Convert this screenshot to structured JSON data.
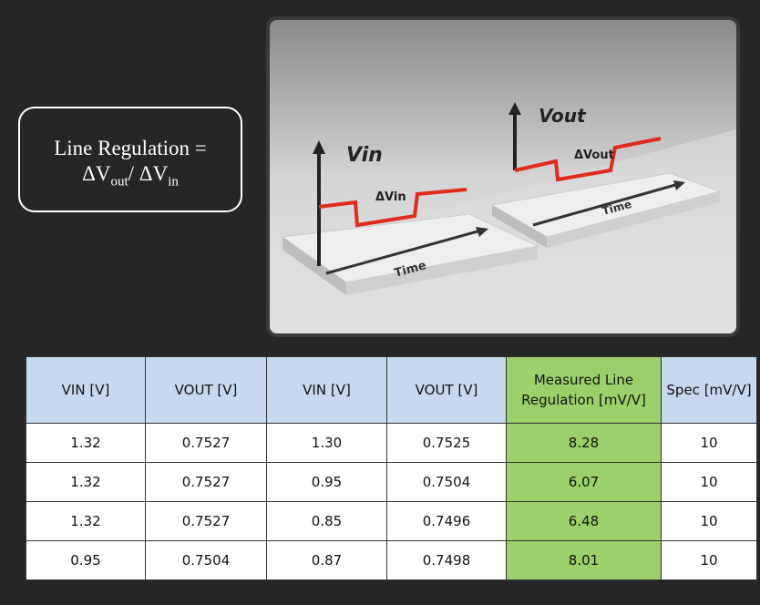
{
  "formula": {
    "left": "Line Regulation =",
    "delta_out": "ΔV",
    "out_sub": "out",
    "slash": "/ ΔV",
    "in_sub": "in"
  },
  "illustration": {
    "left": {
      "axis_label": "Vin",
      "delta_label": "ΔVin",
      "time_label": "Time"
    },
    "right": {
      "axis_label": "Vout",
      "delta_label": "ΔVout",
      "time_label": "Time"
    }
  },
  "table": {
    "header": [
      "VIN [V]",
      "VOUT [V]",
      "VIN [V]",
      "VOUT [V]",
      "Measured Line Regulation [mV/V]",
      "Spec [mV/V]"
    ],
    "rows": [
      [
        "1.32",
        "0.7527",
        "1.30",
        "0.7525",
        "8.28",
        "10"
      ],
      [
        "1.32",
        "0.7527",
        "0.95",
        "0.7504",
        "6.07",
        "10"
      ],
      [
        "1.32",
        "0.7527",
        "0.85",
        "0.7496",
        "6.48",
        "10"
      ],
      [
        "0.95",
        "0.7504",
        "0.87",
        "0.7498",
        "8.01",
        "10"
      ]
    ]
  }
}
